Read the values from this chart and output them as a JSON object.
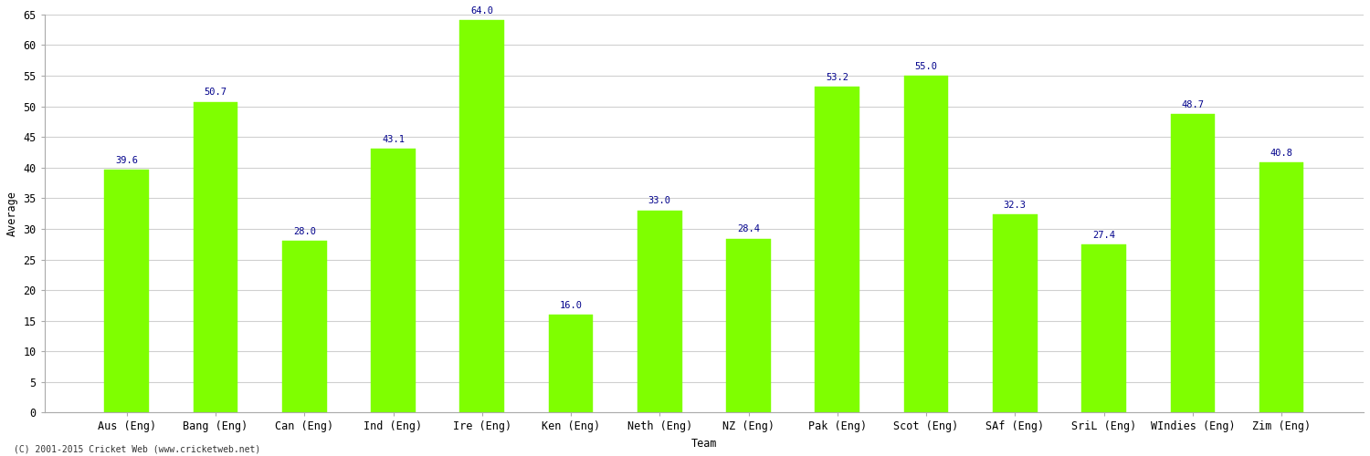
{
  "categories": [
    "Aus (Eng)",
    "Bang (Eng)",
    "Can (Eng)",
    "Ind (Eng)",
    "Ire (Eng)",
    "Ken (Eng)",
    "Neth (Eng)",
    "NZ (Eng)",
    "Pak (Eng)",
    "Scot (Eng)",
    "SAf (Eng)",
    "SriL (Eng)",
    "WIndies (Eng)",
    "Zim (Eng)"
  ],
  "values": [
    39.6,
    50.7,
    28.0,
    43.1,
    64.0,
    16.0,
    33.0,
    28.4,
    53.2,
    55.0,
    32.3,
    27.4,
    48.7,
    40.8
  ],
  "bar_color": "#7FFF00",
  "bar_edge_color": "#7FFF00",
  "value_color": "#00008B",
  "ylabel": "Average",
  "xlabel": "Team",
  "ylim": [
    0,
    65
  ],
  "yticks": [
    0,
    5,
    10,
    15,
    20,
    25,
    30,
    35,
    40,
    45,
    50,
    55,
    60,
    65
  ],
  "grid_color": "#d0d0d0",
  "bg_color": "#ffffff",
  "footer": "(C) 2001-2015 Cricket Web (www.cricketweb.net)",
  "value_fontsize": 7.5,
  "label_fontsize": 8.5,
  "ylabel_fontsize": 8.5,
  "xlabel_fontsize": 8.5,
  "bar_width": 0.5
}
